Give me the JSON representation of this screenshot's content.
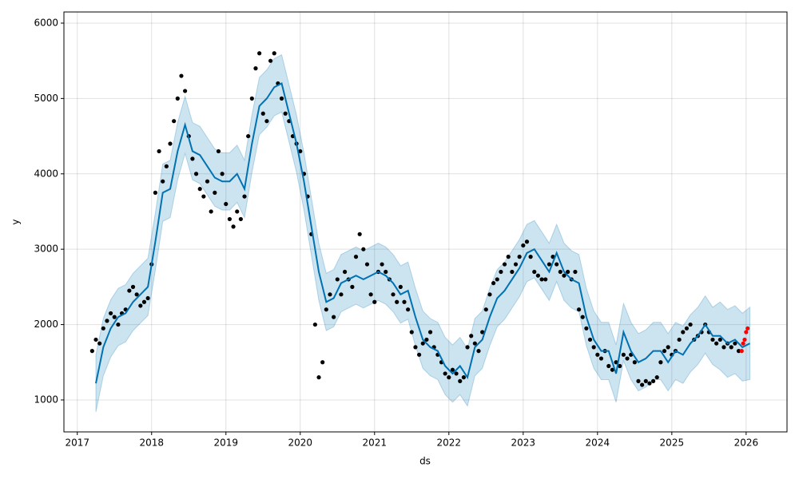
{
  "chart_data": {
    "type": "forecast",
    "xlabel": "ds",
    "ylabel": "y",
    "xlim": [
      2016.82,
      2026.55
    ],
    "ylim": [
      576,
      6148
    ],
    "xticks": [
      2017,
      2018,
      2019,
      2020,
      2021,
      2022,
      2023,
      2024,
      2025,
      2026
    ],
    "yticks": [
      1000,
      2000,
      3000,
      4000,
      5000,
      6000
    ],
    "grid": true,
    "forecast": {
      "color": "#0072B2",
      "band_color": "#0072B2",
      "x": [
        2017.25,
        2017.35,
        2017.45,
        2017.55,
        2017.65,
        2017.75,
        2017.85,
        2017.95,
        2018.05,
        2018.15,
        2018.25,
        2018.35,
        2018.45,
        2018.55,
        2018.65,
        2018.75,
        2018.85,
        2018.95,
        2019.05,
        2019.15,
        2019.25,
        2019.35,
        2019.45,
        2019.55,
        2019.65,
        2019.75,
        2019.85,
        2019.95,
        2020.05,
        2020.15,
        2020.25,
        2020.35,
        2020.45,
        2020.55,
        2020.65,
        2020.75,
        2020.85,
        2020.95,
        2021.05,
        2021.15,
        2021.25,
        2021.35,
        2021.45,
        2021.55,
        2021.65,
        2021.75,
        2021.85,
        2021.95,
        2022.05,
        2022.15,
        2022.25,
        2022.35,
        2022.45,
        2022.55,
        2022.65,
        2022.75,
        2022.85,
        2022.95,
        2023.05,
        2023.15,
        2023.25,
        2023.35,
        2023.45,
        2023.55,
        2023.65,
        2023.75,
        2023.85,
        2023.95,
        2024.05,
        2024.15,
        2024.25,
        2024.35,
        2024.45,
        2024.55,
        2024.65,
        2024.75,
        2024.85,
        2024.95,
        2025.05,
        2025.15,
        2025.25,
        2025.35,
        2025.45,
        2025.55,
        2025.65,
        2025.75,
        2025.85,
        2025.95,
        2026.05
      ],
      "yhat": [
        1220,
        1700,
        1950,
        2100,
        2150,
        2300,
        2400,
        2500,
        3100,
        3750,
        3800,
        4300,
        4650,
        4300,
        4250,
        4100,
        3950,
        3900,
        3900,
        4000,
        3800,
        4400,
        4900,
        5000,
        5150,
        5200,
        4800,
        4400,
        3900,
        3300,
        2700,
        2300,
        2350,
        2550,
        2600,
        2650,
        2600,
        2650,
        2700,
        2650,
        2550,
        2400,
        2450,
        2100,
        1800,
        1700,
        1650,
        1450,
        1350,
        1450,
        1300,
        1700,
        1800,
        2100,
        2350,
        2450,
        2600,
        2750,
        2950,
        3000,
        2850,
        2700,
        2950,
        2700,
        2600,
        2550,
        2100,
        1800,
        1650,
        1650,
        1350,
        1900,
        1650,
        1500,
        1550,
        1650,
        1650,
        1500,
        1650,
        1600,
        1750,
        1850,
        2000,
        1850,
        1850,
        1750,
        1800,
        1700,
        1750
      ],
      "yhat_lower": [
        840,
        1320,
        1570,
        1720,
        1770,
        1920,
        2020,
        2120,
        2720,
        3370,
        3420,
        3920,
        4270,
        3920,
        3870,
        3720,
        3570,
        3520,
        3520,
        3620,
        3420,
        4020,
        4520,
        4620,
        4770,
        4820,
        4420,
        4020,
        3520,
        2920,
        2320,
        1920,
        1970,
        2170,
        2220,
        2270,
        2220,
        2270,
        2320,
        2270,
        2170,
        2020,
        2070,
        1720,
        1420,
        1320,
        1270,
        1070,
        970,
        1070,
        920,
        1320,
        1420,
        1720,
        1970,
        2070,
        2220,
        2370,
        2570,
        2620,
        2470,
        2320,
        2570,
        2320,
        2220,
        2170,
        1720,
        1420,
        1270,
        1270,
        970,
        1520,
        1270,
        1120,
        1170,
        1270,
        1270,
        1120,
        1270,
        1220,
        1370,
        1470,
        1620,
        1470,
        1400,
        1300,
        1350,
        1250,
        1270
      ],
      "yhat_upper": [
        1600,
        2080,
        2330,
        2480,
        2530,
        2680,
        2780,
        2880,
        3480,
        4130,
        4180,
        4680,
        5030,
        4680,
        4630,
        4480,
        4330,
        4280,
        4280,
        4380,
        4180,
        4780,
        5280,
        5380,
        5530,
        5580,
        5180,
        4780,
        4280,
        3680,
        3080,
        2680,
        2730,
        2930,
        2980,
        3030,
        2980,
        3030,
        3080,
        3030,
        2930,
        2780,
        2830,
        2480,
        2180,
        2080,
        2030,
        1830,
        1730,
        1830,
        1680,
        2080,
        2180,
        2480,
        2730,
        2830,
        2980,
        3130,
        3330,
        3380,
        3230,
        3080,
        3330,
        3080,
        2980,
        2930,
        2480,
        2180,
        2030,
        2030,
        1730,
        2280,
        2030,
        1880,
        1930,
        2030,
        2030,
        1880,
        2030,
        1980,
        2130,
        2230,
        2380,
        2230,
        2300,
        2200,
        2250,
        2150,
        2230
      ]
    },
    "observed": {
      "color": "#000000",
      "x": [
        2017.2,
        2017.25,
        2017.3,
        2017.35,
        2017.4,
        2017.45,
        2017.5,
        2017.55,
        2017.6,
        2017.65,
        2017.7,
        2017.75,
        2017.8,
        2017.85,
        2017.9,
        2017.95,
        2018.0,
        2018.05,
        2018.1,
        2018.15,
        2018.2,
        2018.25,
        2018.3,
        2018.35,
        2018.4,
        2018.45,
        2018.5,
        2018.55,
        2018.6,
        2018.65,
        2018.7,
        2018.75,
        2018.8,
        2018.85,
        2018.9,
        2018.95,
        2019.0,
        2019.05,
        2019.1,
        2019.15,
        2019.2,
        2019.25,
        2019.3,
        2019.35,
        2019.4,
        2019.45,
        2019.5,
        2019.55,
        2019.6,
        2019.65,
        2019.7,
        2019.75,
        2019.8,
        2019.85,
        2019.9,
        2019.95,
        2020.0,
        2020.05,
        2020.1,
        2020.15,
        2020.2,
        2020.25,
        2020.3,
        2020.35,
        2020.4,
        2020.45,
        2020.5,
        2020.55,
        2020.6,
        2020.65,
        2020.7,
        2020.75,
        2020.8,
        2020.85,
        2020.9,
        2020.95,
        2021.0,
        2021.05,
        2021.1,
        2021.15,
        2021.2,
        2021.25,
        2021.3,
        2021.35,
        2021.4,
        2021.45,
        2021.5,
        2021.55,
        2021.6,
        2021.65,
        2021.7,
        2021.75,
        2021.8,
        2021.85,
        2021.9,
        2021.95,
        2022.0,
        2022.05,
        2022.1,
        2022.15,
        2022.2,
        2022.25,
        2022.3,
        2022.35,
        2022.4,
        2022.45,
        2022.5,
        2022.55,
        2022.6,
        2022.65,
        2022.7,
        2022.75,
        2022.8,
        2022.85,
        2022.9,
        2022.95,
        2023.0,
        2023.05,
        2023.1,
        2023.15,
        2023.2,
        2023.25,
        2023.3,
        2023.35,
        2023.4,
        2023.45,
        2023.5,
        2023.55,
        2023.6,
        2023.65,
        2023.7,
        2023.75,
        2023.8,
        2023.85,
        2023.9,
        2023.95,
        2024.0,
        2024.05,
        2024.1,
        2024.15,
        2024.2,
        2024.25,
        2024.3,
        2024.35,
        2024.4,
        2024.45,
        2024.5,
        2024.55,
        2024.6,
        2024.65,
        2024.7,
        2024.75,
        2024.8,
        2024.85,
        2024.9,
        2024.95,
        2025.0,
        2025.05,
        2025.1,
        2025.15,
        2025.2,
        2025.25,
        2025.3,
        2025.35,
        2025.4,
        2025.45,
        2025.5,
        2025.55,
        2025.6,
        2025.65,
        2025.7,
        2025.75,
        2025.8,
        2025.85,
        2025.9
      ],
      "y": [
        1650,
        1800,
        1750,
        1950,
        2050,
        2150,
        2100,
        2000,
        2150,
        2200,
        2450,
        2500,
        2400,
        2250,
        2300,
        2350,
        2800,
        3750,
        4300,
        3900,
        4100,
        4400,
        4700,
        5000,
        5300,
        5100,
        4500,
        4200,
        4000,
        3800,
        3700,
        3900,
        3500,
        3750,
        4300,
        4000,
        3600,
        3400,
        3300,
        3500,
        3400,
        3700,
        4500,
        5000,
        5400,
        5600,
        4800,
        4700,
        5500,
        5600,
        5200,
        5000,
        4800,
        4700,
        4500,
        4400,
        4300,
        4000,
        3700,
        3200,
        2000,
        1300,
        1500,
        2200,
        2400,
        2100,
        2600,
        2400,
        2700,
        2600,
        2500,
        2900,
        3200,
        3000,
        2800,
        2400,
        2300,
        2700,
        2800,
        2700,
        2600,
        2400,
        2300,
        2500,
        2300,
        2200,
        1900,
        1700,
        1600,
        1750,
        1800,
        1900,
        1700,
        1600,
        1500,
        1350,
        1300,
        1400,
        1350,
        1250,
        1300,
        1700,
        1850,
        1750,
        1650,
        1900,
        2200,
        2400,
        2550,
        2600,
        2700,
        2800,
        2900,
        2700,
        2800,
        2900,
        3050,
        3100,
        2900,
        2700,
        2650,
        2600,
        2600,
        2800,
        2900,
        2800,
        2700,
        2650,
        2700,
        2600,
        2700,
        2200,
        2100,
        1950,
        1800,
        1700,
        1600,
        1550,
        1650,
        1450,
        1400,
        1500,
        1450,
        1600,
        1550,
        1600,
        1500,
        1250,
        1200,
        1250,
        1220,
        1250,
        1300,
        1500,
        1650,
        1700,
        1600,
        1650,
        1800,
        1900,
        1950,
        2000,
        1800,
        1850,
        1900,
        2000,
        1900,
        1800,
        1750,
        1800,
        1700,
        1750,
        1700,
        1750,
        1650
      ]
    },
    "recent": {
      "color": "#ff0000",
      "x": [
        2025.94,
        2025.96,
        2025.98,
        2026.0,
        2026.02
      ],
      "y": [
        1650,
        1750,
        1800,
        1900,
        1950
      ]
    }
  }
}
